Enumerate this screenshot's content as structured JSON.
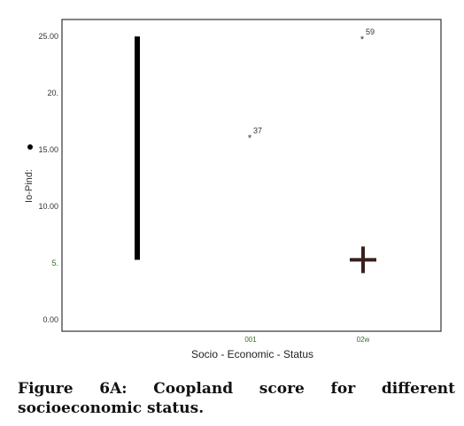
{
  "chart_data": {
    "type": "box",
    "ylabel": "Coopland score",
    "ylabel_display": "Io-Pind:",
    "xlabel": "Socio - Economic - Status",
    "yticks": [
      {
        "label": "25.00",
        "value": 25
      },
      {
        "label": "20.",
        "value": 20
      },
      {
        "label": "15.00",
        "value": 15
      },
      {
        "label": "10.00",
        "value": 10
      },
      {
        "label": "5.",
        "value": 5
      },
      {
        "label": "0.00",
        "value": 0
      }
    ],
    "ylim": [
      -1,
      26.5
    ],
    "categories": [
      "001",
      "002",
      "003"
    ],
    "category_display": [
      "",
      "001",
      "02w"
    ],
    "range_bar": {
      "category": "001",
      "low": 5.3,
      "high": 25
    },
    "outliers": [
      {
        "category": "002",
        "value": 16.3,
        "label": "37"
      },
      {
        "category": "003",
        "value": 25,
        "label": "59"
      }
    ],
    "median_marker": {
      "category": "003",
      "value": 5.3
    },
    "colors": {
      "axis": "#333333",
      "bar": "#000000",
      "marker": "#3a1f1f",
      "tick_label": "#3a6e2a"
    }
  },
  "caption": {
    "line1": "Figure 6A: Coopland score for different",
    "line2": "socioeconomic status."
  }
}
